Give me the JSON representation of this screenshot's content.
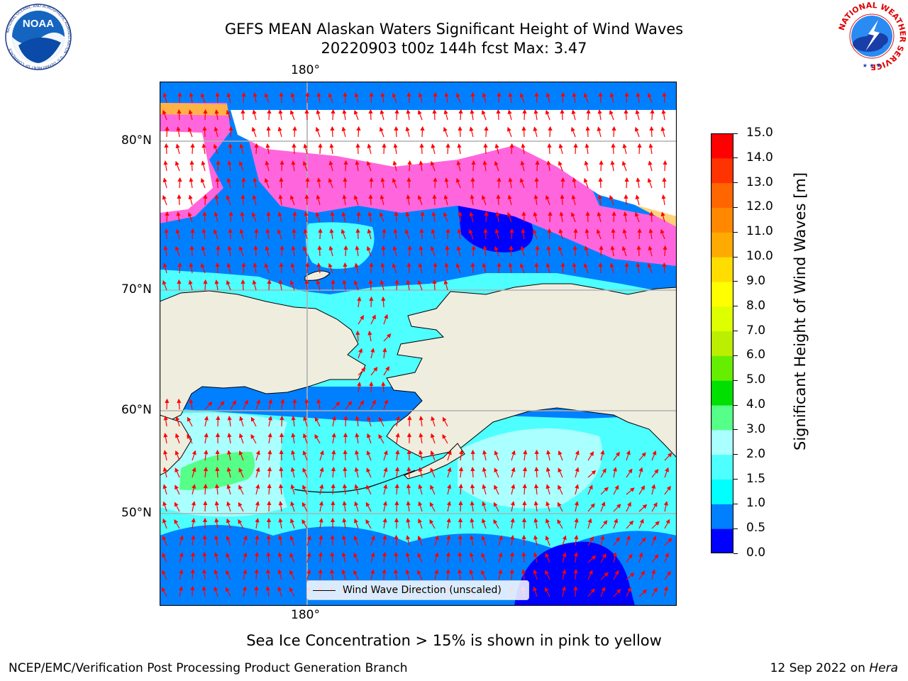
{
  "header": {
    "title_line1": "GEFS MEAN Alaskan Waters Significant Height of Wind Waves",
    "title_line2": "20220903 t00z 144h fcst   Max: 3.47"
  },
  "logos": {
    "left": {
      "text": "NOAA",
      "ring_text": "NATIONAL OCEANIC AND ATMOSPHERIC ADMINISTRATION · U.S. DEPARTMENT OF COMMERCE"
    },
    "right": {
      "ring_text": "NATIONAL WEATHER SERVICE"
    }
  },
  "map": {
    "lon_label_top": "180°",
    "lon_label_bottom": "180°",
    "lat_labels": [
      "80°N",
      "70°N",
      "60°N",
      "50°N"
    ],
    "legend_label": "Wind Wave Direction (unscaled)",
    "colors": {
      "land": "#efedde",
      "grid": "#b0b0b0",
      "arrow": "#ff0000",
      "ice_pink": "#ff66dd",
      "ice_orange": "#ffb347",
      "ice_yellow": "#ffd27a"
    }
  },
  "colorbar": {
    "label": "Significant Height of Wind Waves [m]",
    "ticks": [
      "0.0",
      "0.5",
      "1.0",
      "1.5",
      "2.0",
      "3.0",
      "4.0",
      "5.0",
      "6.0",
      "7.0",
      "8.0",
      "9.0",
      "10.0",
      "11.0",
      "12.0",
      "13.0",
      "14.0",
      "15.0"
    ],
    "colors": [
      "#0000ff",
      "#0080ff",
      "#00ffff",
      "#4dffff",
      "#aaffff",
      "#55ff88",
      "#00e000",
      "#66ee00",
      "#bbee00",
      "#ddff00",
      "#ffff00",
      "#ffdd00",
      "#ffaa00",
      "#ff8800",
      "#ff6600",
      "#ff3300",
      "#ff0000"
    ]
  },
  "caption": "Sea Ice Concentration > 15% is shown in pink to yellow",
  "footer": {
    "left": "NCEP/EMC/Verification Post Processing Product Generation Branch",
    "right_date": "12 Sep 2022 on ",
    "right_host": "Hera"
  }
}
